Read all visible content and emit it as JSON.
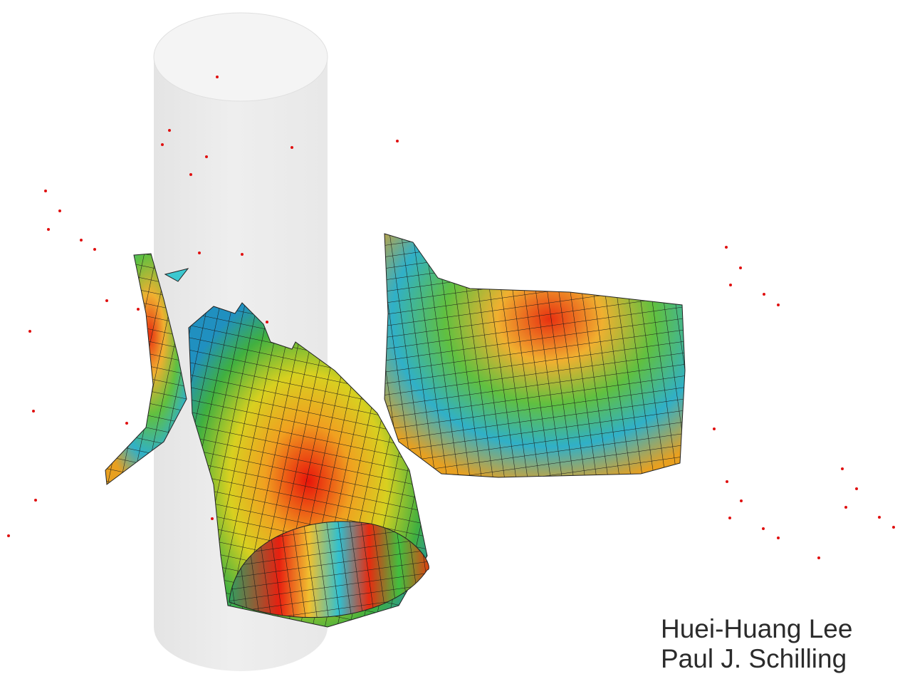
{
  "authors": [
    "Huei-Huang Lee",
    "Paul J. Schilling"
  ]
}
